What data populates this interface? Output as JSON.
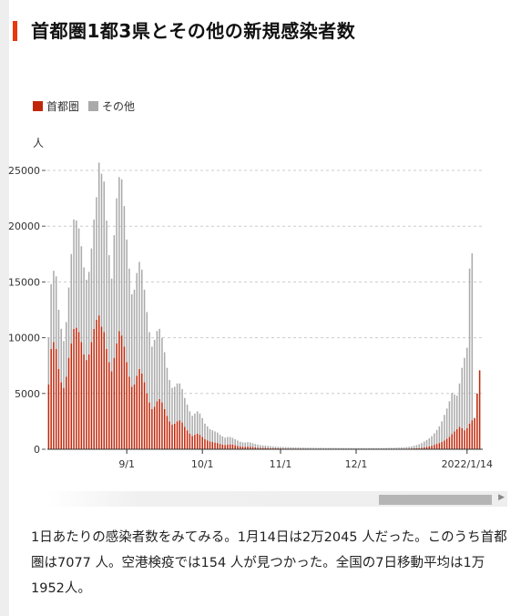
{
  "page": {
    "title": "首都圏1都3県とその他の新規感染者数",
    "body": "1日あたりの感染者数をみてみる。1月14日は2万2045 人だった。このうち首都圏は7077 人。空港検疫では154 人が見つかった。全国の7日移動平均は1万1952人。"
  },
  "colors": {
    "metro": "#c0270a",
    "other": "#aaaaaa",
    "accent": "#e8380d"
  },
  "legend": [
    {
      "label": "首都圏",
      "color": "#c0270a"
    },
    {
      "label": "その他",
      "color": "#aaaaaa"
    }
  ],
  "chart_data": {
    "type": "bar",
    "stacked": true,
    "ylabel": "人",
    "ylim": [
      0,
      27000
    ],
    "yticks": [
      0,
      5000,
      10000,
      15000,
      20000,
      25000
    ],
    "grid": true,
    "legend_position": "top-left",
    "xticks": [
      {
        "label": "9/1",
        "index": 31
      },
      {
        "label": "10/1",
        "index": 61
      },
      {
        "label": "11/1",
        "index": 92
      },
      {
        "label": "12/1",
        "index": 122
      },
      {
        "label": "2022/1/14",
        "index": 166
      }
    ],
    "series": [
      {
        "name": "首都圏",
        "values": [
          5800,
          9000,
          9600,
          9000,
          7200,
          6000,
          5500,
          6500,
          8200,
          9500,
          10800,
          10900,
          10500,
          9600,
          8500,
          8000,
          8500,
          9600,
          10800,
          11600,
          12000,
          11000,
          10500,
          9000,
          7800,
          7000,
          8200,
          9500,
          10600,
          10200,
          9200,
          7800,
          6500,
          5600,
          5800,
          6600,
          7200,
          6800,
          6000,
          5000,
          4200,
          3600,
          3800,
          4300,
          4500,
          4200,
          3600,
          3000,
          2500,
          2200,
          2300,
          2500,
          2600,
          2400,
          2000,
          1700,
          1400,
          1200,
          1300,
          1400,
          1300,
          1100,
          900,
          800,
          700,
          650,
          600,
          560,
          480,
          420,
          380,
          420,
          440,
          420,
          360,
          300,
          260,
          230,
          220,
          240,
          230,
          200,
          170,
          150,
          130,
          120,
          120,
          110,
          100,
          90,
          85,
          80,
          75,
          70,
          68,
          66,
          62,
          60,
          58,
          56,
          54,
          52,
          50,
          50,
          48,
          48,
          47,
          46,
          46,
          45,
          45,
          44,
          44,
          43,
          43,
          42,
          42,
          42,
          41,
          41,
          40,
          40,
          40,
          40,
          39,
          39,
          38,
          38,
          38,
          37,
          37,
          37,
          38,
          38,
          39,
          40,
          42,
          44,
          46,
          48,
          52,
          56,
          60,
          65,
          70,
          80,
          95,
          110,
          140,
          170,
          210,
          260,
          320,
          400,
          480,
          560,
          650,
          780,
          950,
          1100,
          1350,
          1600,
          1800,
          2000,
          1900,
          1700,
          1900,
          2300,
          2600,
          2800,
          5000,
          7077
        ]
      },
      {
        "name": "その他",
        "values": [
          4200,
          5800,
          6400,
          6500,
          5300,
          4800,
          4200,
          4900,
          6300,
          8000,
          9800,
          9600,
          9300,
          8600,
          7800,
          7200,
          7400,
          8400,
          9800,
          11000,
          13700,
          13700,
          13500,
          11500,
          9600,
          8300,
          11000,
          13000,
          13800,
          14000,
          12600,
          11000,
          9700,
          8300,
          8500,
          9200,
          9600,
          9300,
          8300,
          7300,
          6300,
          5600,
          6000,
          6300,
          6300,
          5800,
          5100,
          4300,
          3700,
          3300,
          3300,
          3400,
          3300,
          3000,
          2600,
          2300,
          2000,
          1800,
          1900,
          2000,
          1900,
          1700,
          1400,
          1250,
          1100,
          1050,
          1000,
          940,
          820,
          730,
          660,
          680,
          660,
          600,
          540,
          480,
          420,
          390,
          380,
          400,
          380,
          340,
          300,
          270,
          240,
          220,
          210,
          190,
          180,
          165,
          150,
          140,
          135,
          130,
          126,
          120,
          115,
          110,
          105,
          102,
          98,
          95,
          92,
          90,
          88,
          86,
          84,
          82,
          80,
          79,
          78,
          77,
          76,
          75,
          74,
          73,
          72,
          71,
          70,
          70,
          69,
          69,
          68,
          68,
          68,
          67,
          67,
          67,
          68,
          68,
          69,
          70,
          72,
          74,
          77,
          80,
          85,
          90,
          95,
          102,
          110,
          120,
          140,
          160,
          190,
          230,
          280,
          340,
          420,
          520,
          620,
          720,
          860,
          1020,
          1250,
          1500,
          1850,
          2300,
          2700,
          3200,
          3700,
          3300,
          3000,
          3900,
          5400,
          6500,
          7200,
          13900,
          14968
        ]
      }
    ]
  }
}
